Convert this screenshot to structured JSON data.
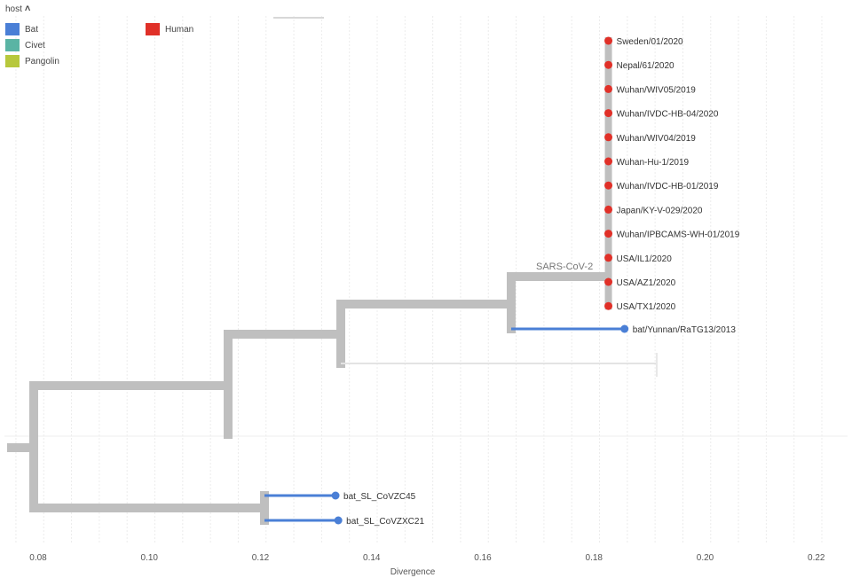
{
  "legend": {
    "title": "host",
    "toggle_icon": "chevron-up-icon",
    "items": [
      {
        "label": "Bat",
        "color": "#4a7fd6"
      },
      {
        "label": "Civet",
        "color": "#5ab4a4"
      },
      {
        "label": "Pangolin",
        "color": "#b7c83c"
      },
      {
        "label": "Human",
        "color": "#e03028"
      }
    ]
  },
  "axis": {
    "title": "Divergence",
    "ticks": [
      "0.08",
      "0.10",
      "0.12",
      "0.14",
      "0.16",
      "0.18",
      "0.20",
      "0.22"
    ]
  },
  "clade_label": "SARS-CoV-2",
  "human_tips": [
    "Sweden/01/2020",
    "Nepal/61/2020",
    "Wuhan/WIV05/2019",
    "Wuhan/IVDC-HB-04/2020",
    "Wuhan/WIV04/2019",
    "Wuhan-Hu-1/2019",
    "Wuhan/IVDC-HB-01/2019",
    "Japan/KY-V-029/2020",
    "Wuhan/IPBCAMS-WH-01/2019",
    "USA/IL1/2020",
    "USA/AZ1/2020",
    "USA/TX1/2020"
  ],
  "bat_tips": [
    {
      "label": "bat/Yunnan/RaTG13/2013",
      "divergence": 0.1855
    },
    {
      "label": "bat_SL_CoVZC45",
      "divergence": 0.1335
    },
    {
      "label": "bat_SL_CoVZXC21",
      "divergence": 0.134
    }
  ],
  "human_divergence": 0.1826,
  "colors": {
    "branch": "#bfbfbf",
    "bat": "#4a7fd6",
    "human": "#e03028",
    "grid": "#e6e6e6"
  }
}
